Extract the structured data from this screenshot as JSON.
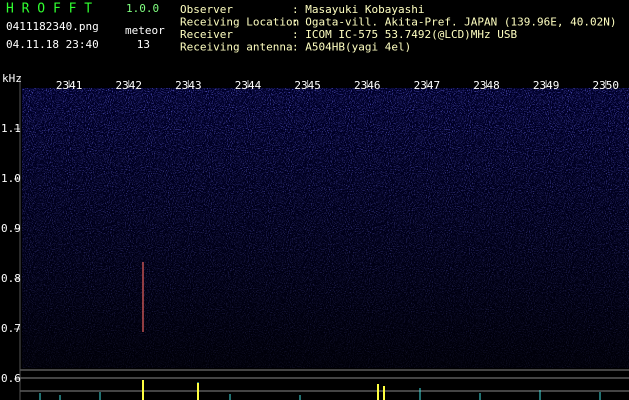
{
  "app": {
    "name": "H R O F F T",
    "version": "1.0.0",
    "file": "0411182340.png",
    "datetime": "04.11.18 23:40",
    "meteor_label": "meteor",
    "meteor_count": 13
  },
  "info": [
    {
      "label": "Observer",
      "value": ": Masayuki Kobayashi"
    },
    {
      "label": "Receiving Location",
      "value": ": Ogata-vill. Akita-Pref. JAPAN (139.96E, 40.02N)"
    },
    {
      "label": "Receiver",
      "value": ": ICOM IC-575 53.7492(@LCD)MHz USB"
    },
    {
      "label": "Receiving antenna",
      "value": ": A504HB(yagi 4el)"
    }
  ],
  "chart_data": {
    "type": "spectrogram",
    "y_unit": "kHz",
    "xlim": [
      2340.21,
      2350.39
    ],
    "xticks": [
      2341,
      2342,
      2343,
      2344,
      2345,
      2346,
      2347,
      2348,
      2349,
      2350
    ],
    "ylim": [
      0.558,
      1.182
    ],
    "yticks": [
      1.1,
      {
        "value": 1,
        "label": "1.0"
      },
      0.9,
      0.8,
      0.7,
      0.6
    ]
  }
}
